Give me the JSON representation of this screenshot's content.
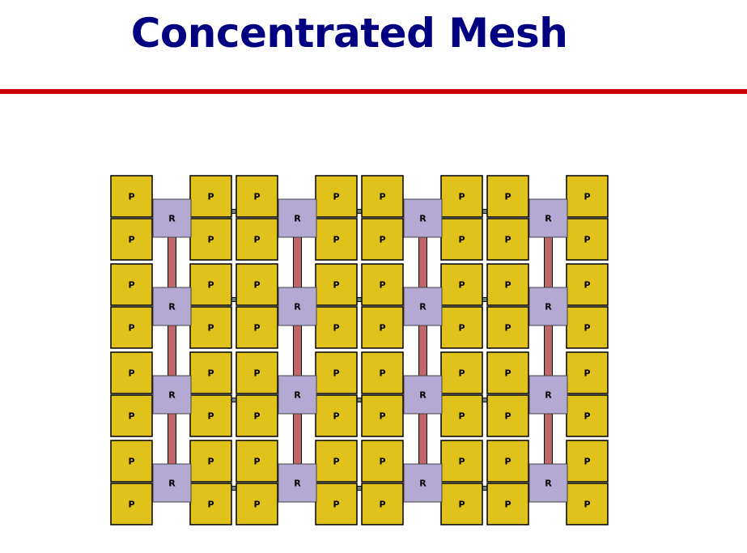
{
  "title": "Concentrated Mesh",
  "accent_color": "#cc0000",
  "title_color": "#000080",
  "diagram": {
    "rows": 4,
    "cols": 4,
    "processor_label": "P",
    "router_label": "R",
    "processor_color": "#e0c21a",
    "router_color": "#b3a9d3",
    "vertical_link_color": "#c06666",
    "horizontal_link_color": "#708a82"
  }
}
